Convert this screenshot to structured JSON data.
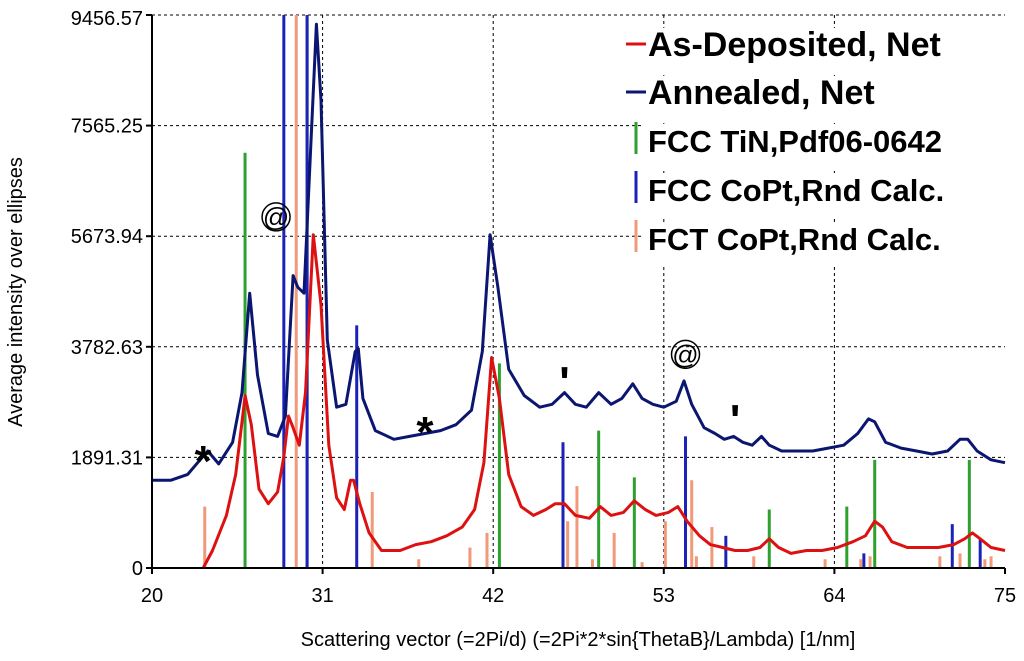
{
  "chart_data": {
    "type": "line",
    "title": "",
    "xlabel": "Scattering vector (=2Pi/d) (=2Pi*2*sin{ThetaB}/Lambda) [1/nm]",
    "ylabel": "Average intensity over ellipses",
    "xlim": [
      20,
      75
    ],
    "ylim": [
      0,
      9456.57
    ],
    "x_ticks": [
      "20",
      "31",
      "42",
      "53",
      "64",
      "75"
    ],
    "y_ticks": [
      "0",
      "1891.31",
      "3782.63",
      "5673.94",
      "7565.25",
      "9456.57"
    ],
    "grid": true,
    "legend_position": "top-right",
    "legend": [
      {
        "label": "As-Deposited, Net",
        "color": "#dd1111"
      },
      {
        "label": "Annealed, Net",
        "color": "#0b1670"
      },
      {
        "label": "FCC TiN,Pdf06-0642",
        "color": "#2ea02e"
      },
      {
        "label": "FCC CoPt,Rnd Calc.",
        "color": "#1a22b8"
      },
      {
        "label": "FCT CoPt,Rnd Calc.",
        "color": "#f09a7a"
      }
    ],
    "series": [
      {
        "name": "Annealed, Net",
        "kind": "line",
        "color": "#0b1670",
        "points": [
          [
            20,
            1500
          ],
          [
            21.2,
            1500
          ],
          [
            22.3,
            1600
          ],
          [
            23.1,
            1850
          ],
          [
            23.6,
            2000
          ],
          [
            24.3,
            1780
          ],
          [
            25.2,
            2150
          ],
          [
            25.8,
            3000
          ],
          [
            26.3,
            4700
          ],
          [
            26.8,
            3300
          ],
          [
            27.5,
            2300
          ],
          [
            28.1,
            2250
          ],
          [
            28.6,
            2600
          ],
          [
            29.1,
            5000
          ],
          [
            29.4,
            4800
          ],
          [
            29.8,
            4700
          ],
          [
            30.2,
            7000
          ],
          [
            30.6,
            9300
          ],
          [
            30.9,
            8000
          ],
          [
            31.3,
            3900
          ],
          [
            31.9,
            2750
          ],
          [
            32.5,
            2800
          ],
          [
            33.1,
            3700
          ],
          [
            33.3,
            3750
          ],
          [
            33.6,
            2900
          ],
          [
            34.4,
            2350
          ],
          [
            35.6,
            2200
          ],
          [
            36.6,
            2250
          ],
          [
            37.6,
            2300
          ],
          [
            38.6,
            2350
          ],
          [
            39.6,
            2450
          ],
          [
            40.6,
            2700
          ],
          [
            41.3,
            3700
          ],
          [
            41.8,
            5700
          ],
          [
            42.3,
            4800
          ],
          [
            43.0,
            3400
          ],
          [
            44.0,
            2950
          ],
          [
            45.0,
            2750
          ],
          [
            45.8,
            2800
          ],
          [
            46.6,
            3000
          ],
          [
            47.3,
            2800
          ],
          [
            48.0,
            2750
          ],
          [
            48.8,
            3000
          ],
          [
            49.6,
            2800
          ],
          [
            50.3,
            2900
          ],
          [
            51.0,
            3150
          ],
          [
            51.6,
            2900
          ],
          [
            52.3,
            2800
          ],
          [
            53.0,
            2750
          ],
          [
            53.8,
            2850
          ],
          [
            54.3,
            3200
          ],
          [
            54.8,
            2800
          ],
          [
            55.6,
            2400
          ],
          [
            56.3,
            2300
          ],
          [
            56.9,
            2200
          ],
          [
            57.5,
            2250
          ],
          [
            58.1,
            2150
          ],
          [
            58.7,
            2100
          ],
          [
            59.3,
            2250
          ],
          [
            59.8,
            2100
          ],
          [
            60.6,
            2000
          ],
          [
            61.6,
            2000
          ],
          [
            62.6,
            2000
          ],
          [
            63.6,
            2050
          ],
          [
            64.6,
            2100
          ],
          [
            65.5,
            2300
          ],
          [
            66.2,
            2550
          ],
          [
            66.6,
            2500
          ],
          [
            67.3,
            2150
          ],
          [
            68.3,
            2050
          ],
          [
            69.3,
            2000
          ],
          [
            70.3,
            1950
          ],
          [
            71.3,
            2000
          ],
          [
            72.1,
            2200
          ],
          [
            72.6,
            2200
          ],
          [
            73.2,
            2000
          ],
          [
            74.1,
            1850
          ],
          [
            75,
            1800
          ]
        ]
      },
      {
        "name": "As-Deposited, Net",
        "kind": "line",
        "color": "#dd1111",
        "points": [
          [
            23.3,
            0
          ],
          [
            23.9,
            300
          ],
          [
            24.8,
            900
          ],
          [
            25.4,
            1600
          ],
          [
            25.8,
            2500
          ],
          [
            26.0,
            2950
          ],
          [
            26.4,
            2450
          ],
          [
            26.9,
            1350
          ],
          [
            27.5,
            1100
          ],
          [
            28.1,
            1300
          ],
          [
            28.5,
            1900
          ],
          [
            28.8,
            2600
          ],
          [
            29.1,
            2400
          ],
          [
            29.5,
            2100
          ],
          [
            29.9,
            3000
          ],
          [
            30.4,
            5700
          ],
          [
            30.9,
            4500
          ],
          [
            31.4,
            2100
          ],
          [
            31.9,
            1200
          ],
          [
            32.4,
            1000
          ],
          [
            32.8,
            1500
          ],
          [
            33.0,
            1500
          ],
          [
            33.4,
            1100
          ],
          [
            34.0,
            600
          ],
          [
            34.8,
            300
          ],
          [
            36.0,
            300
          ],
          [
            37.0,
            400
          ],
          [
            38.0,
            450
          ],
          [
            39.0,
            550
          ],
          [
            40.0,
            700
          ],
          [
            40.8,
            1000
          ],
          [
            41.4,
            1800
          ],
          [
            41.9,
            3600
          ],
          [
            42.4,
            2900
          ],
          [
            43.0,
            1600
          ],
          [
            43.8,
            1050
          ],
          [
            44.6,
            900
          ],
          [
            45.4,
            1000
          ],
          [
            46.0,
            1100
          ],
          [
            46.6,
            1100
          ],
          [
            47.3,
            900
          ],
          [
            48.2,
            850
          ],
          [
            48.9,
            1050
          ],
          [
            49.6,
            900
          ],
          [
            50.4,
            950
          ],
          [
            51.1,
            1150
          ],
          [
            51.8,
            1000
          ],
          [
            52.5,
            900
          ],
          [
            53.3,
            950
          ],
          [
            53.9,
            1050
          ],
          [
            54.5,
            800
          ],
          [
            55.3,
            550
          ],
          [
            56.0,
            400
          ],
          [
            56.8,
            350
          ],
          [
            57.6,
            300
          ],
          [
            58.4,
            300
          ],
          [
            59.2,
            350
          ],
          [
            59.8,
            500
          ],
          [
            60.4,
            350
          ],
          [
            61.2,
            250
          ],
          [
            62.2,
            300
          ],
          [
            63.2,
            300
          ],
          [
            64.2,
            350
          ],
          [
            65.2,
            450
          ],
          [
            66.0,
            550
          ],
          [
            66.6,
            800
          ],
          [
            67.1,
            700
          ],
          [
            67.7,
            450
          ],
          [
            68.7,
            350
          ],
          [
            69.7,
            350
          ],
          [
            70.7,
            350
          ],
          [
            71.7,
            400
          ],
          [
            72.4,
            500
          ],
          [
            72.9,
            600
          ],
          [
            73.4,
            500
          ],
          [
            74.1,
            350
          ],
          [
            75,
            300
          ]
        ]
      },
      {
        "name": "FCC TiN,Pdf06-0642",
        "kind": "sticks",
        "color": "#2ea02e",
        "points": [
          [
            26.0,
            7100
          ],
          [
            30.0,
            9400
          ],
          [
            42.4,
            3500
          ],
          [
            48.8,
            2350
          ],
          [
            51.1,
            1550
          ],
          [
            59.8,
            1000
          ],
          [
            64.8,
            1050
          ],
          [
            66.6,
            1850
          ],
          [
            72.7,
            1850
          ]
        ]
      },
      {
        "name": "FCC CoPt,Rnd Calc.",
        "kind": "sticks",
        "color": "#1a22b8",
        "points": [
          [
            28.5,
            9456
          ],
          [
            30.0,
            9456
          ],
          [
            33.2,
            4150
          ],
          [
            46.5,
            2150
          ],
          [
            54.4,
            2250
          ],
          [
            57.0,
            550
          ],
          [
            65.9,
            250
          ],
          [
            71.6,
            750
          ],
          [
            73.4,
            500
          ]
        ]
      },
      {
        "name": "FCT CoPt,Rnd Calc.",
        "kind": "sticks",
        "color": "#f09a7a",
        "points": [
          [
            23.4,
            1050
          ],
          [
            29.3,
            9456
          ],
          [
            34.2,
            1300
          ],
          [
            37.2,
            150
          ],
          [
            40.5,
            350
          ],
          [
            41.6,
            600
          ],
          [
            46.8,
            800
          ],
          [
            47.4,
            1400
          ],
          [
            48.4,
            150
          ],
          [
            49.8,
            600
          ],
          [
            51.6,
            100
          ],
          [
            53.1,
            800
          ],
          [
            54.8,
            1500
          ],
          [
            55.1,
            200
          ],
          [
            56.1,
            700
          ],
          [
            58.8,
            200
          ],
          [
            63.4,
            150
          ],
          [
            65.7,
            150
          ],
          [
            66.3,
            200
          ],
          [
            70.8,
            200
          ],
          [
            72.1,
            250
          ],
          [
            73.7,
            150
          ],
          [
            74.1,
            200
          ]
        ]
      }
    ],
    "annotations": [
      {
        "text": "*",
        "x": 23.3,
        "y": 2050
      },
      {
        "text": "@",
        "x": 28.0,
        "y": 5850
      },
      {
        "text": "*",
        "x": 37.6,
        "y": 2550
      },
      {
        "text": "'",
        "x": 46.6,
        "y": 3400
      },
      {
        "text": "@",
        "x": 54.4,
        "y": 3500
      },
      {
        "text": "'",
        "x": 57.6,
        "y": 2750
      }
    ]
  }
}
